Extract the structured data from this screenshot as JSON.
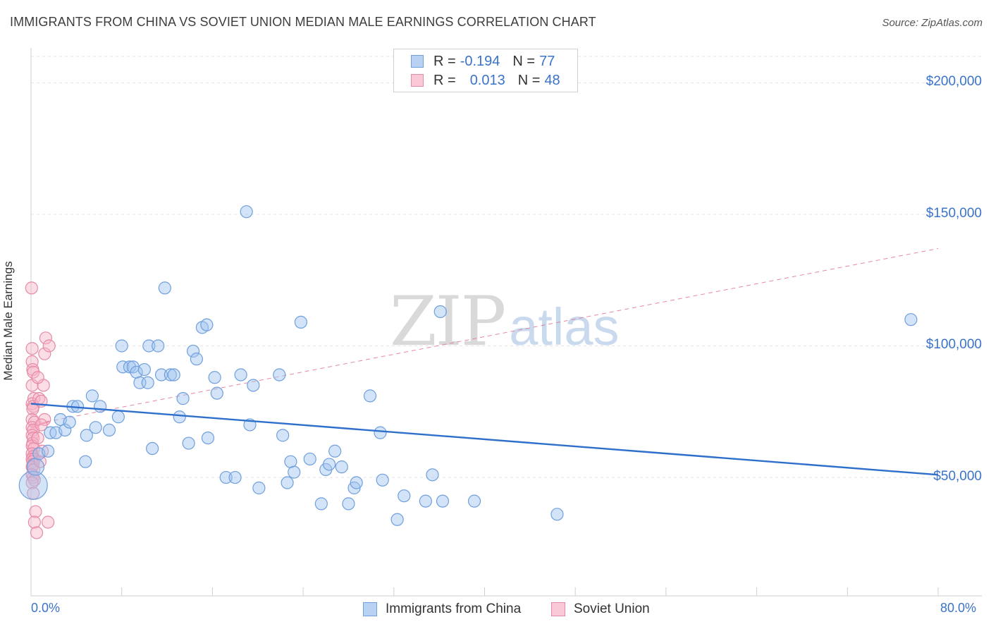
{
  "header": {
    "title": "IMMIGRANTS FROM CHINA VS SOVIET UNION MEDIAN MALE EARNINGS CORRELATION CHART",
    "source": "Source: ZipAtlas.com"
  },
  "watermark": {
    "zip": "ZIP",
    "atlas": "atlas"
  },
  "legend": {
    "rows": [
      {
        "r_label": "R =",
        "r_value": "-0.194",
        "n_label": "N =",
        "n_value": "77",
        "color": "#a9c8f0",
        "border": "#6f9fdc"
      },
      {
        "r_label": "R =",
        "r_value": "0.013",
        "n_label": "N =",
        "n_value": "48",
        "color": "#f7bfd0",
        "border": "#e68aa6"
      }
    ]
  },
  "bottom_legend": {
    "china": "Immigrants from China",
    "soviet": "Soviet Union"
  },
  "colors": {
    "china_fill": "rgba(160,195,240,0.45)",
    "china_stroke": "#6f9fdc",
    "china_line": "#2f6fcc",
    "soviet_fill": "rgba(247,180,200,0.45)",
    "soviet_stroke": "#e68aa6",
    "soviet_line": "#e06a8f",
    "axis_text": "#3a73c9",
    "grid": "#e3e3e3"
  },
  "chart_data": {
    "type": "scatter",
    "title": "IMMIGRANTS FROM CHINA VS SOVIET UNION MEDIAN MALE EARNINGS CORRELATION CHART",
    "xlabel": "",
    "ylabel": "Median Male Earnings",
    "xlim": [
      0,
      80
    ],
    "ylim": [
      5000,
      210000
    ],
    "x_tick_labels": [
      "0.0%",
      "80.0%"
    ],
    "y_ticks": [
      50000,
      100000,
      150000,
      200000
    ],
    "y_tick_labels": [
      "$50,000",
      "$100,000",
      "$150,000",
      "$200,000"
    ],
    "grid": "horizontal dashed",
    "legend_position": "top-center",
    "series": [
      {
        "name": "Immigrants from China",
        "points": [
          [
            0.2,
            47000
          ],
          [
            0.4,
            54000
          ],
          [
            0.7,
            59000
          ],
          [
            1.5,
            60000
          ],
          [
            1.7,
            67000
          ],
          [
            2.2,
            67000
          ],
          [
            2.6,
            72000
          ],
          [
            3.0,
            68000
          ],
          [
            3.4,
            71000
          ],
          [
            3.7,
            77000
          ],
          [
            4.1,
            77000
          ],
          [
            4.8,
            56000
          ],
          [
            4.9,
            66000
          ],
          [
            5.4,
            81000
          ],
          [
            5.7,
            69000
          ],
          [
            6.1,
            77000
          ],
          [
            6.9,
            68000
          ],
          [
            7.7,
            73000
          ],
          [
            8.0,
            100000
          ],
          [
            8.1,
            92000
          ],
          [
            8.7,
            92000
          ],
          [
            9.0,
            92000
          ],
          [
            9.3,
            90000
          ],
          [
            9.6,
            86000
          ],
          [
            10.0,
            91000
          ],
          [
            10.3,
            86000
          ],
          [
            10.4,
            100000
          ],
          [
            10.7,
            61000
          ],
          [
            11.2,
            100000
          ],
          [
            11.5,
            89000
          ],
          [
            11.8,
            122000
          ],
          [
            12.3,
            89000
          ],
          [
            12.6,
            89000
          ],
          [
            13.1,
            73000
          ],
          [
            13.4,
            80000
          ],
          [
            13.9,
            63000
          ],
          [
            14.3,
            98000
          ],
          [
            14.6,
            95000
          ],
          [
            15.1,
            107000
          ],
          [
            15.5,
            108000
          ],
          [
            15.6,
            65000
          ],
          [
            16.2,
            88000
          ],
          [
            16.4,
            82000
          ],
          [
            17.2,
            50000
          ],
          [
            18.0,
            50000
          ],
          [
            18.5,
            89000
          ],
          [
            19.0,
            151000
          ],
          [
            19.3,
            70000
          ],
          [
            19.6,
            85000
          ],
          [
            20.1,
            46000
          ],
          [
            21.9,
            89000
          ],
          [
            22.2,
            66000
          ],
          [
            22.6,
            48000
          ],
          [
            22.9,
            56000
          ],
          [
            23.2,
            52000
          ],
          [
            23.8,
            109000
          ],
          [
            24.6,
            57000
          ],
          [
            25.6,
            40000
          ],
          [
            26.0,
            53000
          ],
          [
            26.3,
            55000
          ],
          [
            26.8,
            60000
          ],
          [
            27.4,
            54000
          ],
          [
            28.0,
            40000
          ],
          [
            28.5,
            46000
          ],
          [
            28.7,
            48000
          ],
          [
            29.9,
            81000
          ],
          [
            30.8,
            67000
          ],
          [
            31.0,
            49000
          ],
          [
            32.3,
            34000
          ],
          [
            32.9,
            43000
          ],
          [
            34.8,
            41000
          ],
          [
            35.4,
            51000
          ],
          [
            36.1,
            113000
          ],
          [
            36.3,
            41000
          ],
          [
            39.1,
            41000
          ],
          [
            46.4,
            36000
          ],
          [
            77.6,
            110000
          ]
        ],
        "trend": {
          "x": [
            0,
            80
          ],
          "y": [
            78000,
            51000
          ],
          "style": "solid"
        }
      },
      {
        "name": "Soviet Union",
        "points": [
          [
            0.05,
            122000
          ],
          [
            0.1,
            99000
          ],
          [
            0.1,
            94000
          ],
          [
            0.15,
            91000
          ],
          [
            0.2,
            90000
          ],
          [
            0.1,
            85000
          ],
          [
            0.25,
            80000
          ],
          [
            0.1,
            78000
          ],
          [
            0.2,
            77000
          ],
          [
            0.15,
            76000
          ],
          [
            0.1,
            72000
          ],
          [
            0.3,
            71000
          ],
          [
            0.1,
            69000
          ],
          [
            0.2,
            68000
          ],
          [
            0.1,
            66000
          ],
          [
            0.2,
            65000
          ],
          [
            0.15,
            63000
          ],
          [
            0.1,
            62000
          ],
          [
            0.25,
            61000
          ],
          [
            0.1,
            59000
          ],
          [
            0.2,
            58000
          ],
          [
            0.1,
            57000
          ],
          [
            0.3,
            57000
          ],
          [
            0.15,
            56000
          ],
          [
            0.2,
            55000
          ],
          [
            0.1,
            54000
          ],
          [
            0.25,
            53000
          ],
          [
            0.1,
            51000
          ],
          [
            0.2,
            50000
          ],
          [
            0.3,
            49000
          ],
          [
            0.1,
            48000
          ],
          [
            0.2,
            44000
          ],
          [
            0.4,
            37000
          ],
          [
            0.3,
            33000
          ],
          [
            0.5,
            29000
          ],
          [
            0.7,
            80000
          ],
          [
            0.9,
            79000
          ],
          [
            1.1,
            85000
          ],
          [
            1.2,
            97000
          ],
          [
            1.2,
            72000
          ],
          [
            1.3,
            103000
          ],
          [
            0.8,
            56000
          ],
          [
            0.6,
            65000
          ],
          [
            0.9,
            70000
          ],
          [
            1.0,
            60000
          ],
          [
            1.5,
            33000
          ],
          [
            1.6,
            100000
          ],
          [
            0.6,
            88000
          ]
        ],
        "trend": {
          "x": [
            0,
            80
          ],
          "y": [
            70000,
            137000
          ],
          "style": "dashed"
        }
      }
    ]
  }
}
